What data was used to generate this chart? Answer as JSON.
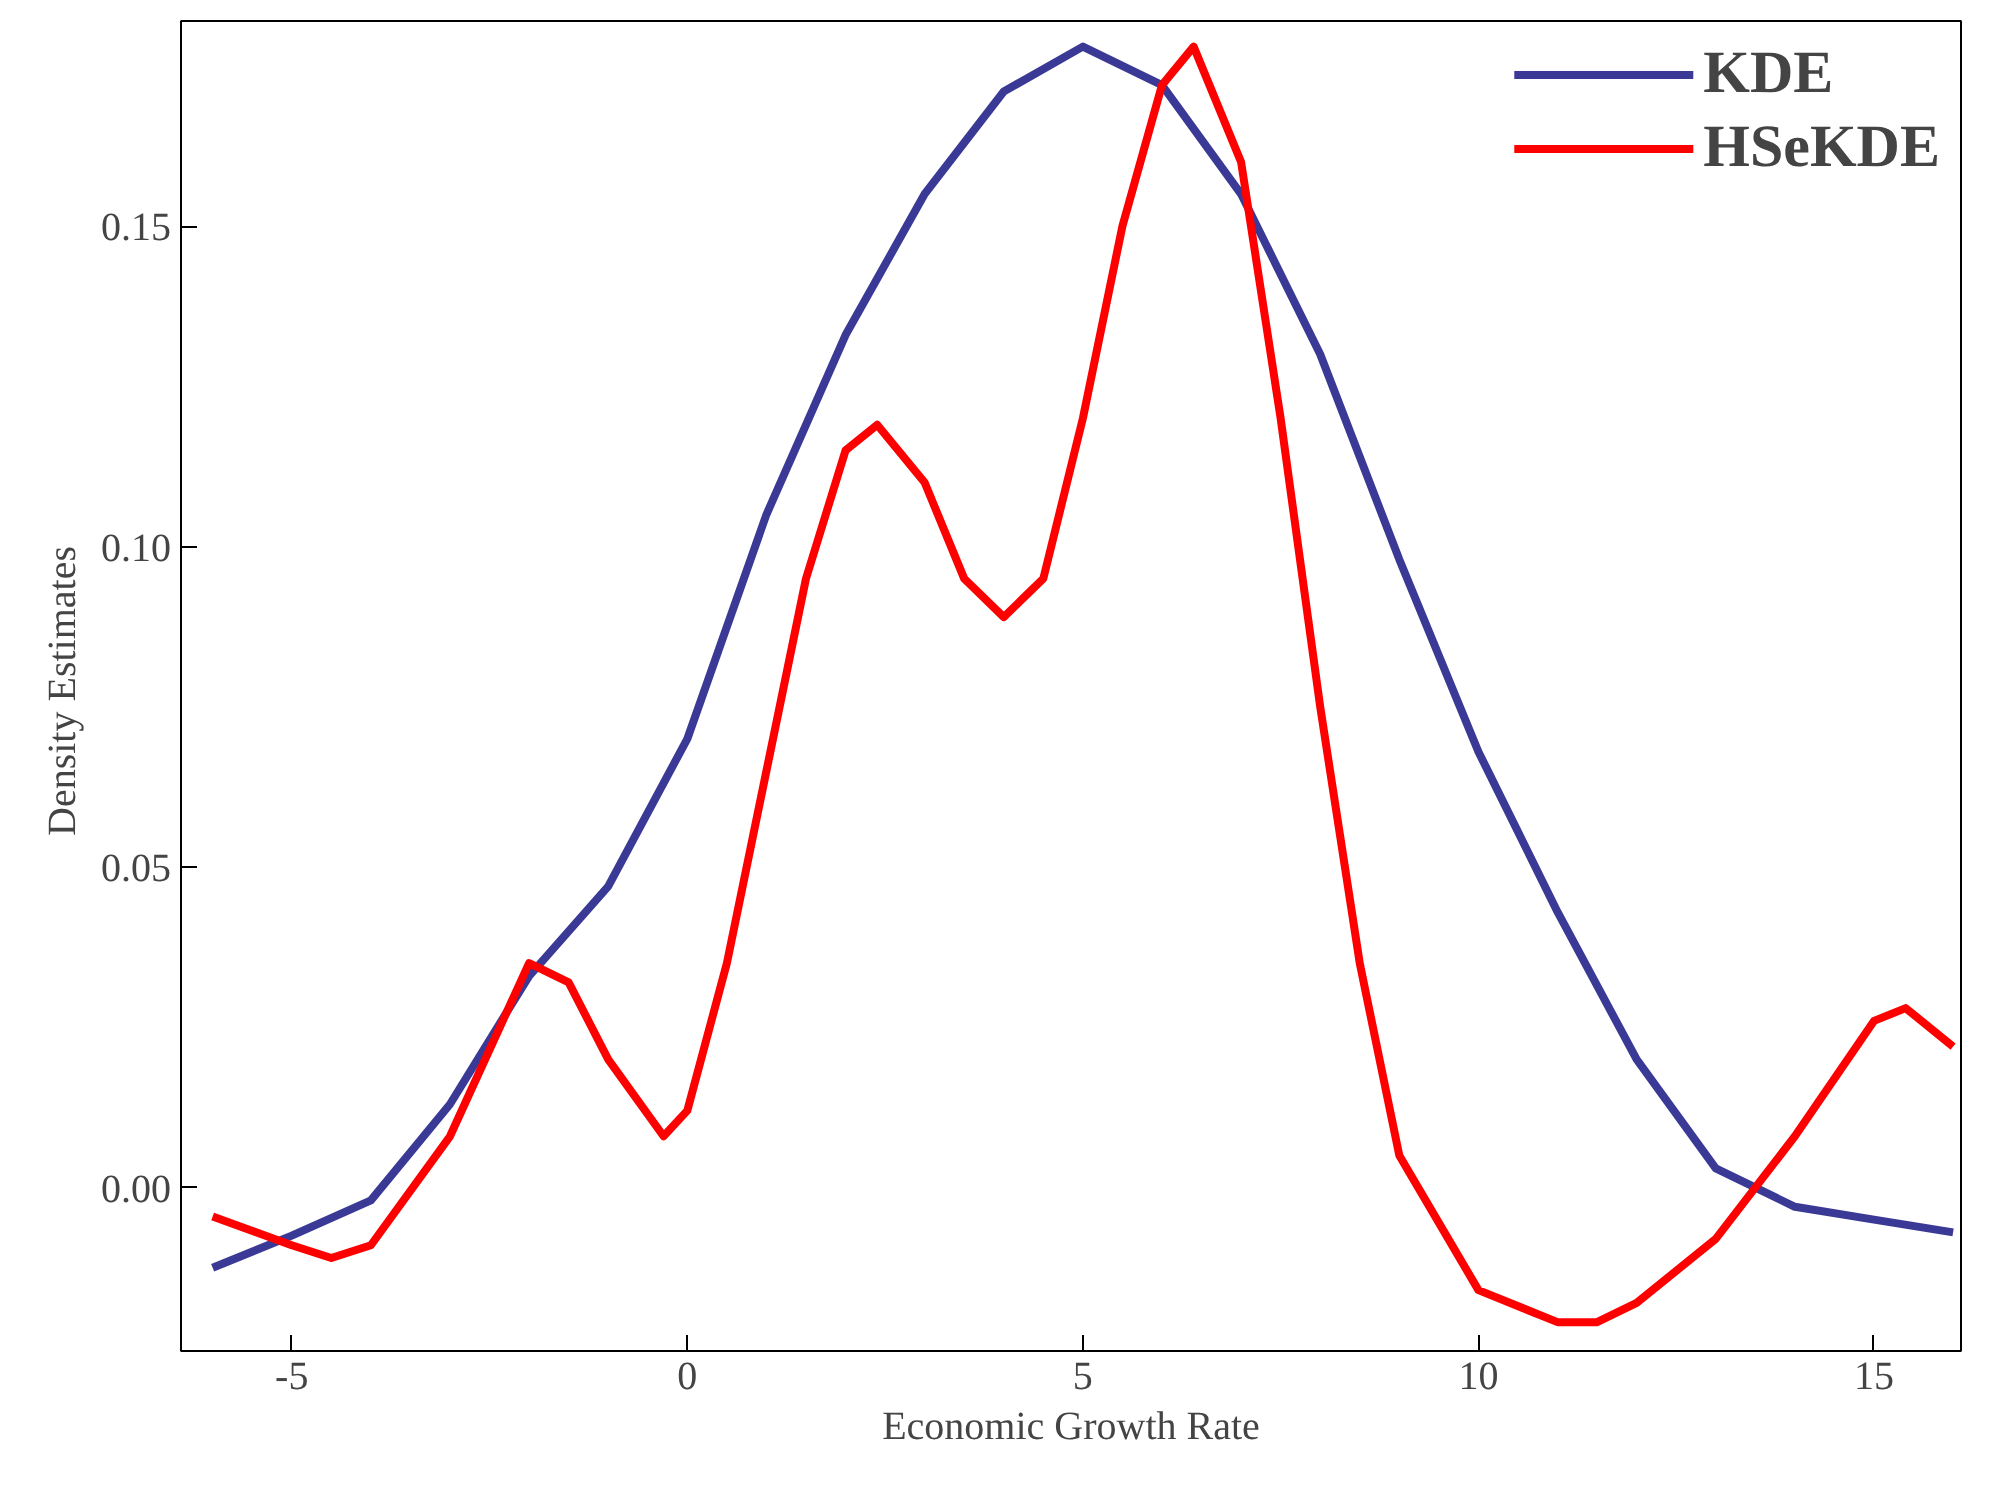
{
  "chart_data": {
    "type": "line",
    "xlabel": "Economic Growth Rate",
    "ylabel": "Density  Estimates",
    "xlim": [
      -6.4,
      16.1
    ],
    "ylim": [
      -0.0255,
      0.182
    ],
    "xticks": [
      -5,
      0,
      5,
      10,
      15
    ],
    "yticks": [
      {
        "value": 0,
        "label": "0.00"
      },
      0.05,
      {
        "value": 0.1,
        "label": "0.10"
      },
      0.15
    ],
    "grid": false,
    "legend": "top right",
    "marker": "none",
    "line_style": "solid",
    "series": [
      {
        "name": "KDE",
        "color": "#3a3a96",
        "x": [
          -6,
          -5,
          -4,
          -3,
          -2,
          -1,
          0,
          1,
          2,
          3,
          4,
          5,
          6,
          7,
          8,
          9,
          10,
          11,
          12,
          13,
          14,
          15,
          16
        ],
        "values": [
          -0.0125,
          -0.0075,
          -0.002,
          0.013,
          0.033,
          0.047,
          0.07,
          0.105,
          0.133,
          0.155,
          0.171,
          0.178,
          0.172,
          0.155,
          0.13,
          0.098,
          0.068,
          0.043,
          0.02,
          0.003,
          -0.003,
          -0.005,
          -0.007
        ]
      },
      {
        "name": "HSeKDE",
        "color": "#ff0000",
        "x": [
          -6,
          -5,
          -4.5,
          -4,
          -3,
          -2,
          -1.5,
          -1,
          -0.3,
          0,
          0.5,
          1,
          1.5,
          2,
          2.4,
          3,
          3.5,
          4,
          4.5,
          5,
          5.5,
          6,
          6.4,
          7,
          7.5,
          8,
          8.5,
          9,
          10,
          11,
          11.5,
          12,
          13,
          14,
          15,
          15.4,
          16
        ],
        "values": [
          -0.0045,
          -0.009,
          -0.011,
          -0.009,
          0.008,
          0.035,
          0.032,
          0.02,
          0.008,
          0.012,
          0.035,
          0.065,
          0.095,
          0.115,
          0.119,
          0.11,
          0.095,
          0.089,
          0.095,
          0.12,
          0.15,
          0.172,
          0.178,
          0.16,
          0.12,
          0.075,
          0.035,
          0.005,
          -0.016,
          -0.021,
          -0.021,
          -0.018,
          -0.008,
          0.008,
          0.026,
          0.028,
          0.022
        ]
      }
    ]
  }
}
